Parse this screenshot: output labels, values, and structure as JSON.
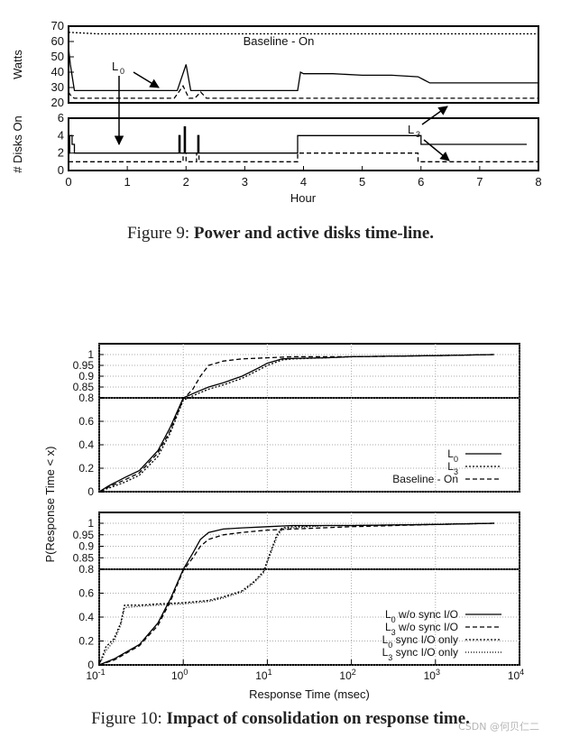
{
  "figure9": {
    "caption_prefix": "Figure 9:",
    "caption_bold": "Power and active disks time-line.",
    "x_label": "Hour",
    "annotations": {
      "baseline": "Baseline - On",
      "l0": "L",
      "l0_sub": "0",
      "l3": "L",
      "l3_sub": "3"
    }
  },
  "figure10": {
    "caption_prefix": "Figure 10:",
    "caption_bold": "Impact of consolidation on response time.",
    "x_label": "Response Time (msec)",
    "y_label": "P(Response Time < x)"
  },
  "watermark": "CSDN @何贝仁二",
  "chart_data": [
    {
      "type": "line",
      "panel": "power",
      "ylabel": "Watts",
      "xlim": [
        0,
        8
      ],
      "ylim": [
        20,
        70
      ],
      "yticks": [
        20,
        30,
        40,
        50,
        60,
        70
      ],
      "grid": false,
      "series": [
        {
          "name": "Baseline - On",
          "style": "dotted",
          "x": [
            0,
            0.5,
            1,
            2,
            3,
            4,
            5,
            6,
            7,
            8
          ],
          "y": [
            66,
            65,
            65,
            65,
            65,
            65,
            65,
            65,
            65,
            65
          ]
        },
        {
          "name": "L0",
          "style": "solid",
          "x": [
            0,
            0.03,
            0.1,
            0.2,
            0.5,
            1.0,
            1.5,
            1.85,
            2.0,
            2.08,
            2.15,
            2.3,
            2.5,
            3.0,
            3.5,
            3.9,
            3.95,
            4.0,
            4.5,
            5.0,
            5.5,
            5.95,
            6.05,
            6.15,
            7.0,
            8.0
          ],
          "y": [
            56,
            45,
            28,
            28,
            28,
            28,
            28,
            28,
            45,
            28,
            28,
            28,
            28,
            28,
            28,
            28,
            40,
            39,
            39,
            38,
            38,
            37,
            35,
            33,
            33,
            33
          ]
        },
        {
          "name": "L3",
          "style": "dashed",
          "x": [
            0,
            0.05,
            0.1,
            0.5,
            1.0,
            1.8,
            1.95,
            2.05,
            2.15,
            2.25,
            2.35,
            2.5,
            3.0,
            4.0,
            5.0,
            6.0,
            6.1,
            7.0,
            8.0
          ],
          "y": [
            27,
            24,
            23,
            23,
            23,
            23,
            31,
            23,
            23,
            27,
            23,
            23,
            23,
            23,
            23,
            23,
            23,
            23,
            23
          ]
        }
      ]
    },
    {
      "type": "line",
      "panel": "disks",
      "ylabel": "# Disks On",
      "xlabel": "Hour",
      "xlim": [
        0,
        8
      ],
      "xticks": [
        0,
        1,
        2,
        3,
        4,
        5,
        6,
        7,
        8
      ],
      "ylim": [
        0,
        6
      ],
      "yticks": [
        0,
        2,
        4,
        6
      ],
      "grid": false,
      "series": [
        {
          "name": "L0",
          "style": "solid",
          "x": [
            0,
            0.02,
            0.02,
            0.06,
            0.06,
            0.1,
            0.1,
            1.88,
            1.88,
            1.9,
            1.9,
            1.97,
            1.97,
            1.99,
            1.99,
            2.2,
            2.2,
            2.22,
            2.22,
            3.9,
            3.9,
            6.0,
            6.0,
            7.8
          ],
          "y": [
            2,
            2,
            4,
            4,
            3,
            3,
            2,
            2,
            4,
            4,
            2,
            2,
            5,
            5,
            2,
            2,
            4,
            4,
            2,
            2,
            4,
            4,
            3,
            3
          ]
        },
        {
          "name": "L3",
          "style": "dashed",
          "x": [
            0,
            0.06,
            0.06,
            1.95,
            1.95,
            2.0,
            2.0,
            2.18,
            2.18,
            2.22,
            2.22,
            3.9,
            3.9,
            5.95,
            5.95,
            8.0
          ],
          "y": [
            1,
            1,
            1,
            1,
            2,
            2,
            1,
            1,
            2,
            2,
            1,
            1,
            2,
            2,
            1,
            1
          ]
        }
      ]
    },
    {
      "type": "line",
      "panel": "cdf-top",
      "xscale": "log",
      "xlim": [
        0.1,
        10000
      ],
      "upper_yticks": [
        0.85,
        0.9,
        0.95,
        1
      ],
      "lower_yticks": [
        0,
        0.2,
        0.4,
        0.6,
        0.8
      ],
      "grid": true,
      "legend_position": "right",
      "series": [
        {
          "name": "L0",
          "style": "solid",
          "x": [
            0.1,
            0.13,
            0.2,
            0.3,
            0.5,
            0.7,
            1.0,
            1.5,
            2,
            3,
            5,
            8,
            10,
            15,
            20,
            50,
            100,
            1000,
            5000
          ],
          "y": [
            0.0,
            0.05,
            0.12,
            0.18,
            0.35,
            0.55,
            0.8,
            0.83,
            0.85,
            0.87,
            0.9,
            0.94,
            0.96,
            0.98,
            0.982,
            0.985,
            0.99,
            0.995,
            1.0
          ]
        },
        {
          "name": "L3",
          "style": "dotted",
          "x": [
            0.1,
            0.13,
            0.2,
            0.3,
            0.5,
            0.7,
            1.0,
            1.5,
            2,
            3,
            5,
            8,
            10,
            15,
            20,
            50,
            100,
            1000,
            5000
          ],
          "y": [
            0.0,
            0.03,
            0.08,
            0.14,
            0.3,
            0.5,
            0.78,
            0.82,
            0.84,
            0.86,
            0.89,
            0.93,
            0.95,
            0.975,
            0.98,
            0.985,
            0.99,
            0.995,
            1.0
          ]
        },
        {
          "name": "Baseline - On",
          "style": "dashed",
          "x": [
            0.1,
            0.13,
            0.2,
            0.3,
            0.5,
            0.7,
            1.0,
            1.3,
            1.6,
            2,
            3,
            5,
            10,
            20,
            100,
            1000,
            5000
          ],
          "y": [
            0.0,
            0.04,
            0.1,
            0.16,
            0.33,
            0.52,
            0.79,
            0.84,
            0.9,
            0.95,
            0.97,
            0.98,
            0.985,
            0.99,
            0.99,
            0.995,
            1.0
          ]
        }
      ]
    },
    {
      "type": "line",
      "panel": "cdf-bottom",
      "xscale": "log",
      "xlabel": "Response Time (msec)",
      "xticks": [
        "10^-1",
        "10^0",
        "10^1",
        "10^2",
        "10^3",
        "10^4"
      ],
      "xlim": [
        0.1,
        10000
      ],
      "upper_yticks": [
        0.85,
        0.9,
        0.95,
        1
      ],
      "lower_yticks": [
        0,
        0.2,
        0.4,
        0.6,
        0.8
      ],
      "grid": true,
      "legend_position": "right",
      "series": [
        {
          "name": "L0 w/o sync I/O",
          "style": "solid",
          "x": [
            0.1,
            0.15,
            0.2,
            0.3,
            0.5,
            0.7,
            1.0,
            1.3,
            1.6,
            2,
            3,
            5,
            10,
            20,
            100,
            1000,
            5000
          ],
          "y": [
            0.0,
            0.05,
            0.1,
            0.17,
            0.35,
            0.55,
            0.8,
            0.87,
            0.93,
            0.96,
            0.975,
            0.98,
            0.985,
            0.99,
            0.99,
            0.995,
            1.0
          ]
        },
        {
          "name": "L3 w/o sync I/O",
          "style": "dashed",
          "x": [
            0.1,
            0.15,
            0.2,
            0.3,
            0.5,
            0.7,
            1.0,
            1.3,
            1.6,
            2,
            3,
            5,
            10,
            20,
            100,
            1000,
            5000
          ],
          "y": [
            0.0,
            0.04,
            0.09,
            0.16,
            0.33,
            0.53,
            0.79,
            0.85,
            0.9,
            0.93,
            0.95,
            0.96,
            0.97,
            0.975,
            0.985,
            0.995,
            1.0
          ]
        },
        {
          "name": "L0 sync I/O only",
          "style": "dotted",
          "x": [
            0.1,
            0.12,
            0.15,
            0.18,
            0.2,
            0.3,
            0.5,
            1,
            2,
            3,
            5,
            7,
            9,
            11,
            13,
            15,
            20,
            50,
            100,
            1000,
            5000
          ],
          "y": [
            0.0,
            0.15,
            0.22,
            0.35,
            0.5,
            0.5,
            0.51,
            0.52,
            0.54,
            0.57,
            0.62,
            0.7,
            0.78,
            0.88,
            0.95,
            0.98,
            0.985,
            0.99,
            0.99,
            0.995,
            1.0
          ]
        },
        {
          "name": "L3 sync I/O only",
          "style": "fine-dotted",
          "x": [
            0.1,
            0.12,
            0.15,
            0.18,
            0.2,
            0.3,
            0.5,
            1,
            2,
            3,
            5,
            7,
            9,
            11,
            13,
            15,
            20,
            50,
            100,
            1000,
            5000
          ],
          "y": [
            0.0,
            0.12,
            0.2,
            0.33,
            0.48,
            0.49,
            0.5,
            0.51,
            0.53,
            0.56,
            0.61,
            0.69,
            0.77,
            0.87,
            0.94,
            0.975,
            0.98,
            0.99,
            0.99,
            0.995,
            1.0
          ]
        }
      ]
    }
  ]
}
